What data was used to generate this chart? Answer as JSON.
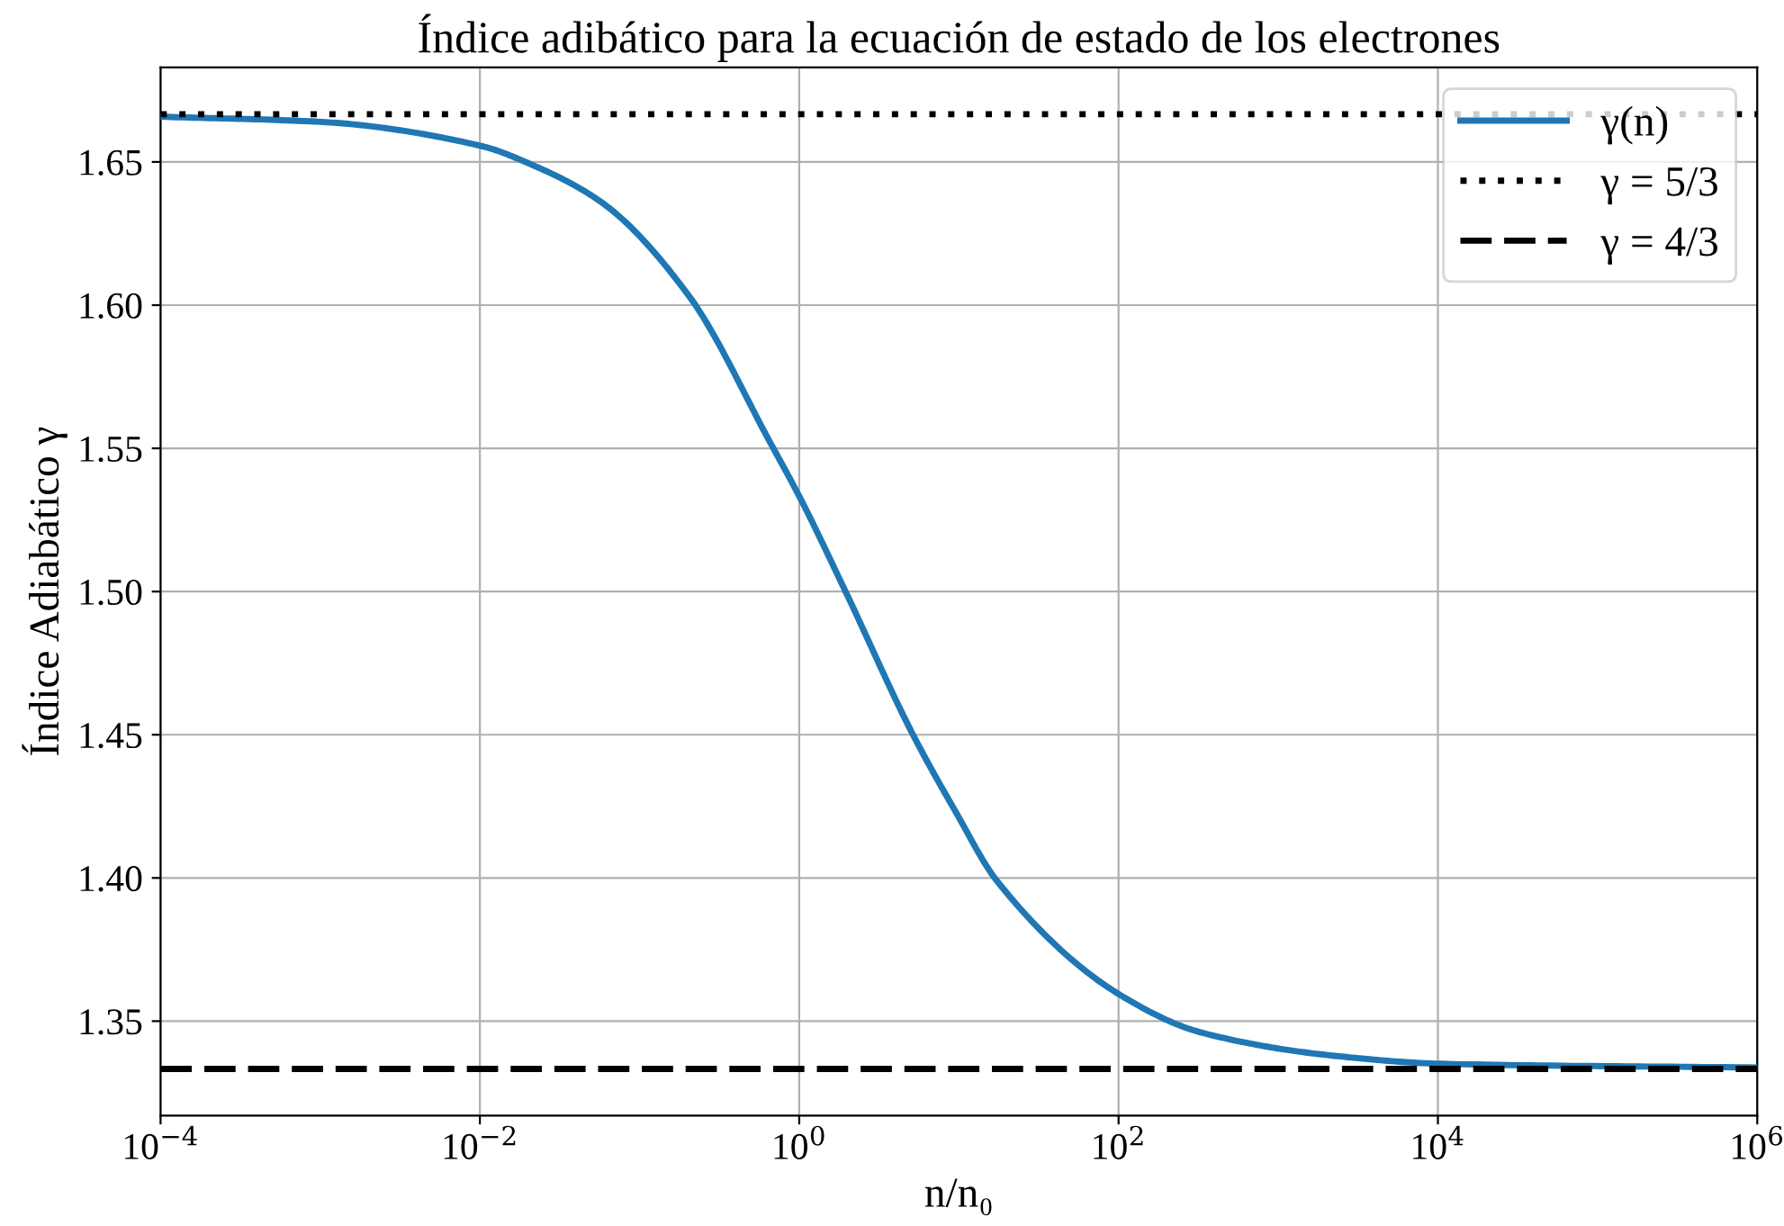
{
  "chart_data": {
    "type": "line",
    "title": "Índice adibático para la ecuación de estado de los electrones",
    "xlabel": "n/n₀",
    "ylabel": "Índice Adiabático γ",
    "log": "x",
    "xlim": [
      0.0001,
      1000000
    ],
    "ylim": [
      1.317,
      1.683
    ],
    "xticks": [
      {
        "value": 0.0001,
        "label": "10$^{−4}$"
      },
      {
        "value": 0.01,
        "label": "10$^{−2}$"
      },
      {
        "value": 1,
        "label": "10$^{0}$"
      },
      {
        "value": 100,
        "label": "10$^{2}$"
      },
      {
        "value": 10000,
        "label": "10$^{4}$"
      },
      {
        "value": 1000000,
        "label": "10$^{6}$"
      }
    ],
    "yticks": [
      1.35,
      {
        "value": 1.4,
        "label": "1.40"
      },
      1.45,
      {
        "value": 1.5,
        "label": "1.50"
      },
      1.55,
      {
        "value": 1.6,
        "label": "1.60"
      },
      1.65
    ],
    "grid": true,
    "legend": "top right",
    "series": [
      {
        "name": "γ(n)",
        "color": "#1f77b4",
        "line_style": "solid",
        "x": [
          0.0001,
          0.001,
          0.01,
          0.0216,
          0.0575,
          0.204,
          0.66,
          1.03,
          1.95,
          5.16,
          9.5,
          17.4,
          104,
          331,
          2340,
          10700,
          1000000
        ],
        "values": [
          1.6658,
          1.664,
          1.6557,
          1.6488,
          1.636,
          1.6032,
          1.5519,
          1.5319,
          1.5,
          1.45,
          1.4233,
          1.3988,
          1.3589,
          1.346,
          1.3378,
          1.3351,
          1.3338
        ]
      },
      {
        "name": "γ = 5/3",
        "color": "#000000",
        "line_style": "dotted",
        "x": [
          0.0001,
          1000000
        ],
        "values": [
          1.6666667,
          1.6666667
        ]
      },
      {
        "name": "γ = 4/3",
        "color": "#000000",
        "line_style": "dashed",
        "x": [
          0.0001,
          1000000
        ],
        "values": [
          1.3333333,
          1.3333333
        ]
      }
    ]
  }
}
